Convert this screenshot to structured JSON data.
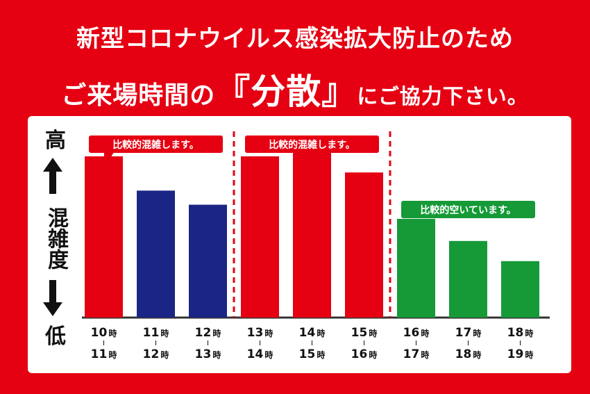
{
  "header": {
    "line1": "新型コロナウイルス感染拡大防止のため",
    "line2_pre": "ご来場時間の",
    "line2_open": "『",
    "line2_emphasis": "分散",
    "line2_close": "』",
    "line2_post": "にご協力下さい。"
  },
  "axis": {
    "high": "高",
    "low": "低",
    "mid": "混雑度"
  },
  "colors": {
    "background": "#e50012",
    "busy": "#e50012",
    "medium": "#1b2585",
    "free": "#159a37",
    "panel": "#ffffff"
  },
  "chart_data": {
    "type": "bar",
    "categories": [
      {
        "from": "10",
        "to": "11"
      },
      {
        "from": "11",
        "to": "12"
      },
      {
        "from": "12",
        "to": "13"
      },
      {
        "from": "13",
        "to": "14"
      },
      {
        "from": "14",
        "to": "15"
      },
      {
        "from": "15",
        "to": "16"
      },
      {
        "from": "16",
        "to": "17"
      },
      {
        "from": "17",
        "to": "18"
      },
      {
        "from": "18",
        "to": "19"
      }
    ],
    "hour_unit": "時",
    "values": [
      80,
      63,
      56,
      80,
      87,
      72,
      49,
      38,
      28
    ],
    "bar_levels": [
      "busy",
      "medium",
      "medium",
      "busy",
      "busy",
      "busy",
      "free",
      "free",
      "free"
    ],
    "ylim": [
      0,
      100
    ],
    "callouts": [
      {
        "text": "比較的混雑します。",
        "level": "busy",
        "group_start": 0,
        "group_end": 2
      },
      {
        "text": "比較的混雑します。",
        "level": "busy",
        "group_start": 3,
        "group_end": 5
      },
      {
        "text": "比較的空いています。",
        "level": "free",
        "group_start": 6,
        "group_end": 8
      }
    ],
    "separators_after": [
      2,
      5
    ],
    "grid": false
  }
}
